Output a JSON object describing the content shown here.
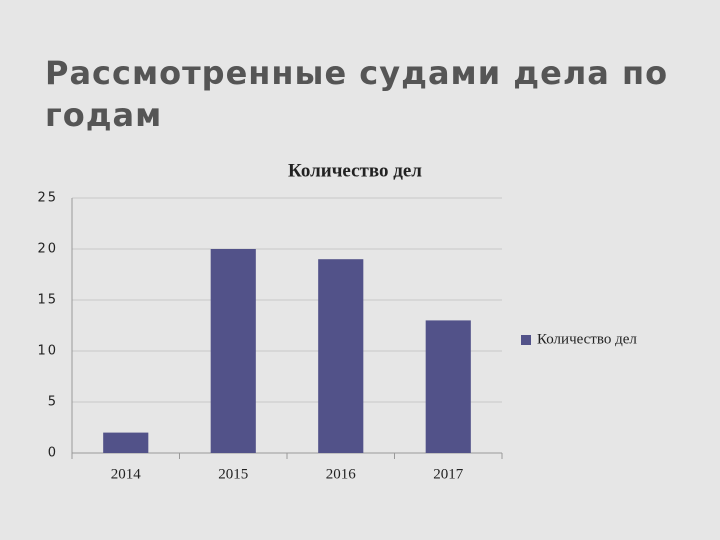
{
  "slide": {
    "title": "Рассмотренные судами дела по годам"
  },
  "chart_data": {
    "type": "bar",
    "title": "Количество дел",
    "categories": [
      "2014",
      "2015",
      "2016",
      "2017"
    ],
    "series": [
      {
        "name": "Количество дел",
        "color": "#525289",
        "values": [
          2,
          20,
          19,
          13
        ]
      }
    ],
    "ylim": [
      0,
      25
    ],
    "yticks": [
      0,
      5,
      10,
      15,
      20,
      25
    ],
    "grid": true,
    "legend": "right"
  }
}
